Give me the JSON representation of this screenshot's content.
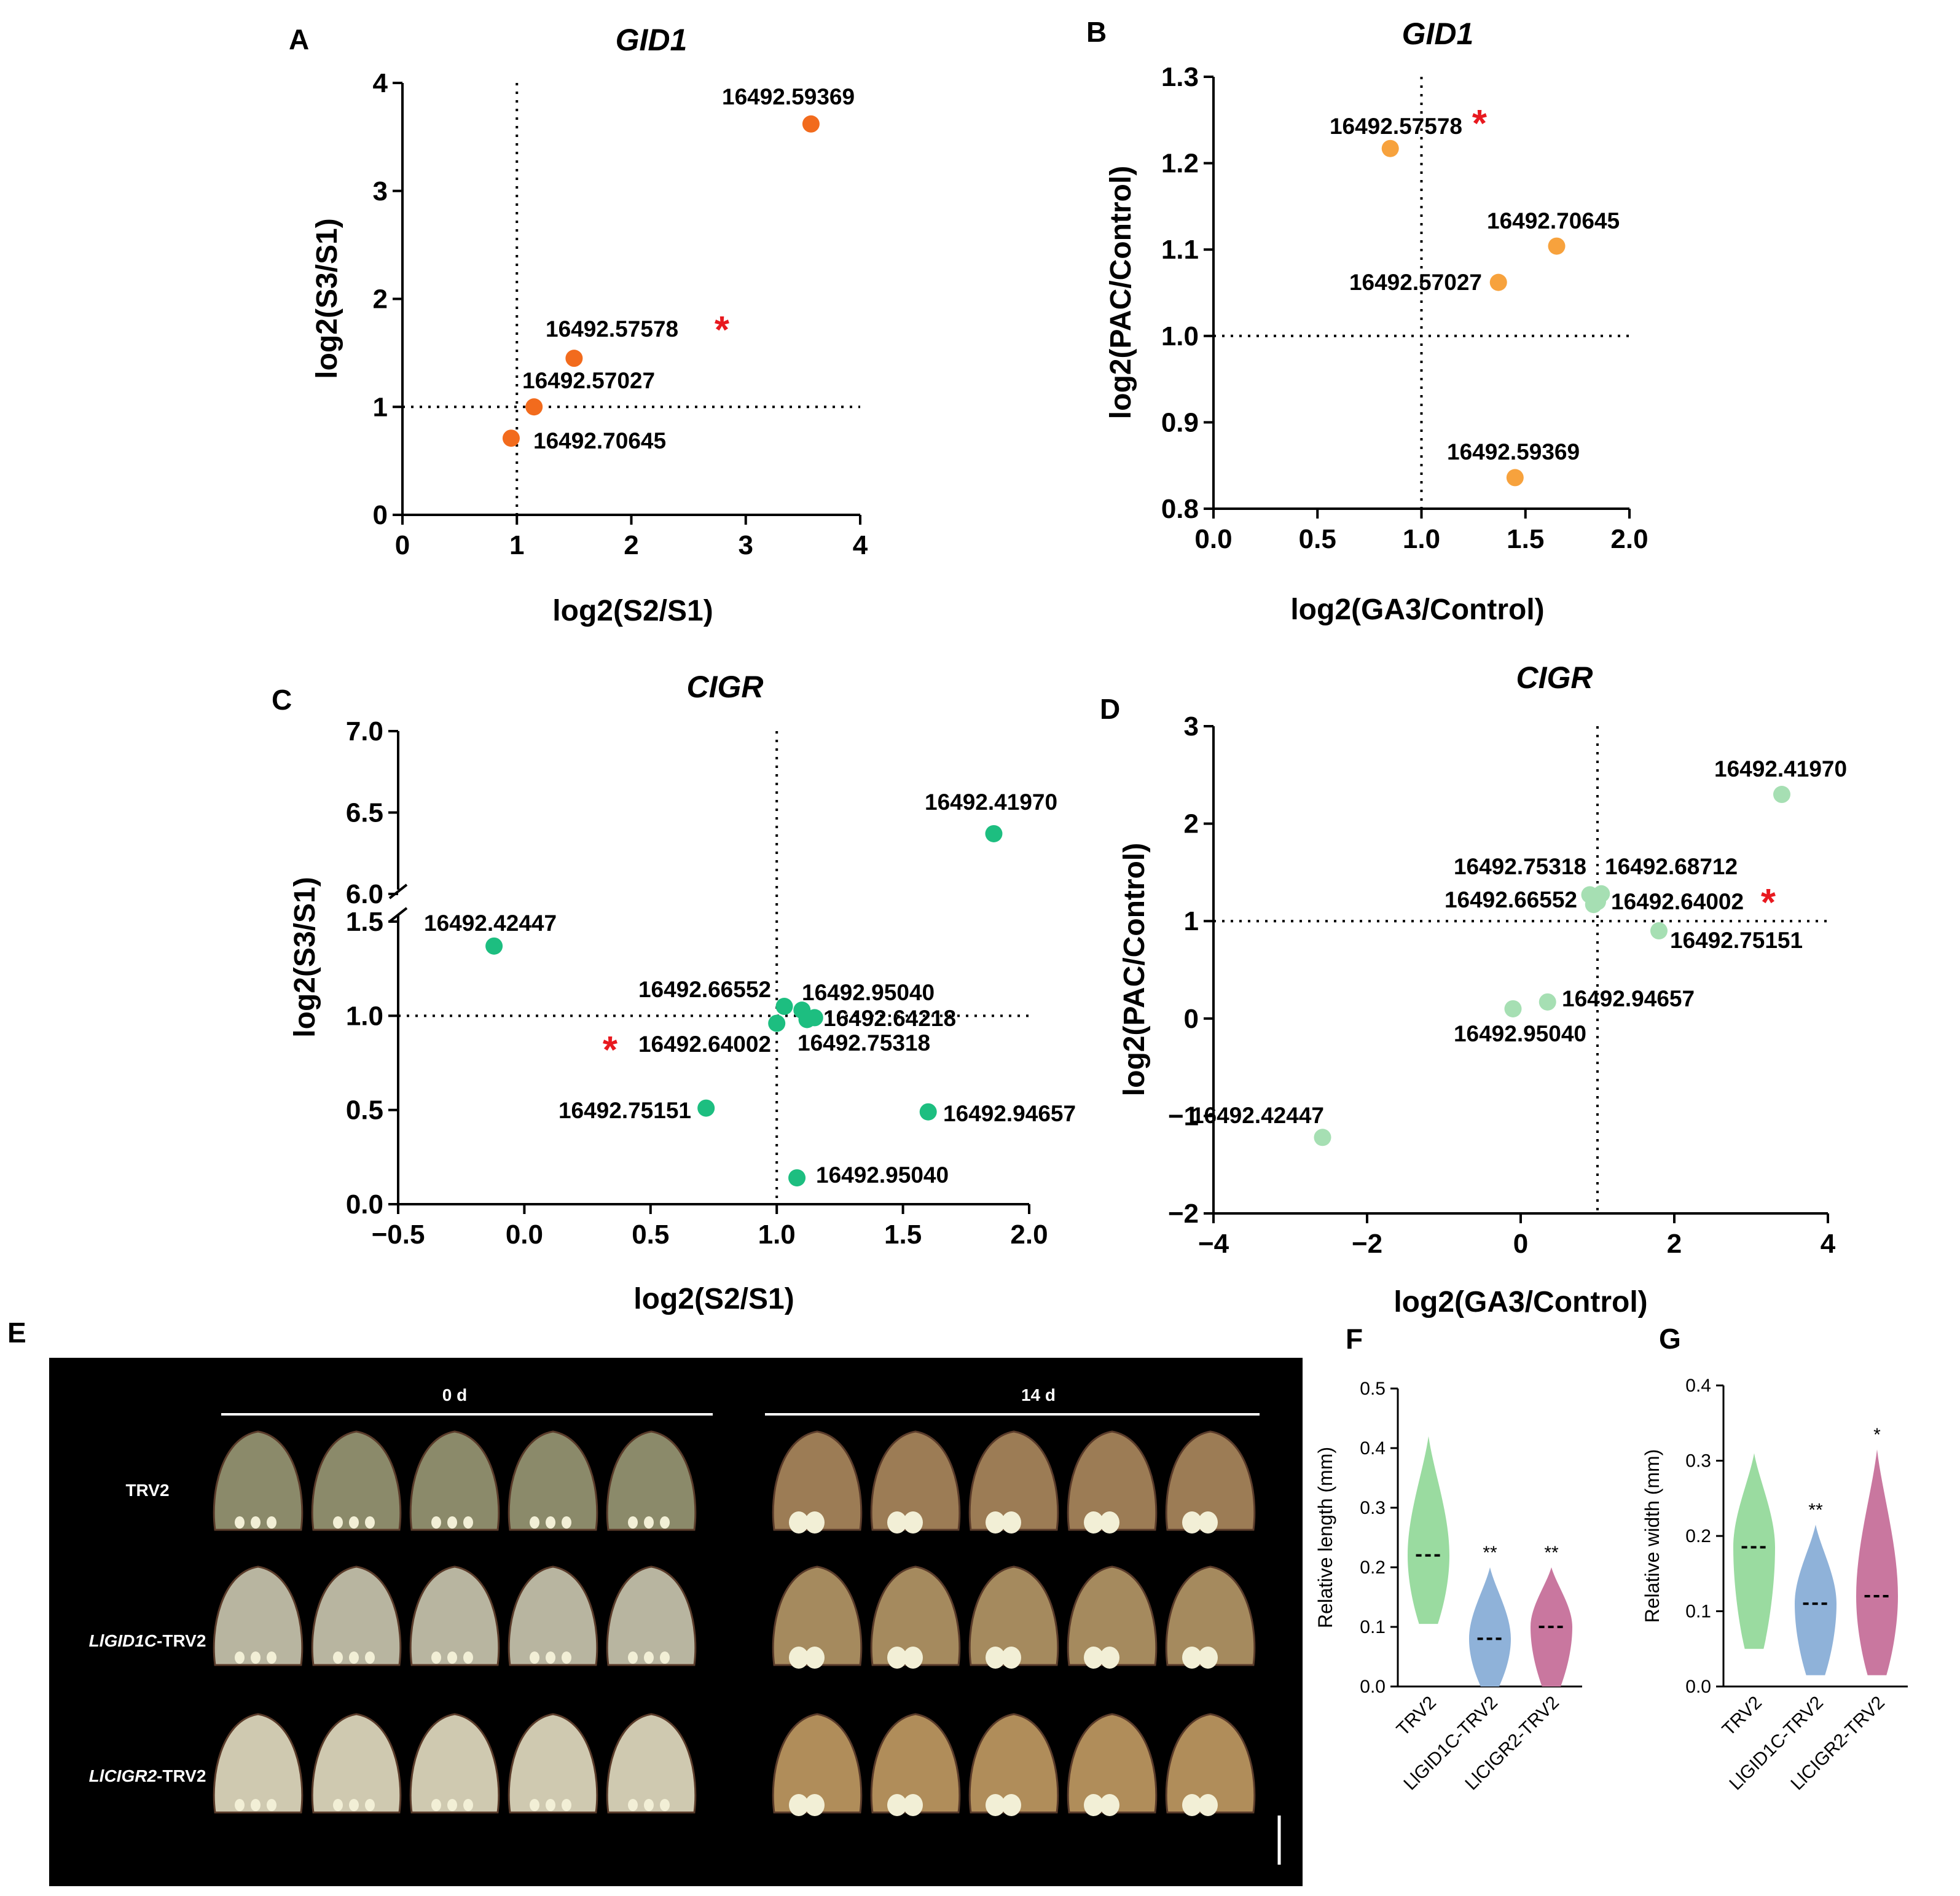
{
  "figure": {
    "panel_letters": [
      "A",
      "B",
      "C",
      "D",
      "E",
      "F",
      "G"
    ],
    "photo": {
      "time_labels": [
        "0 d",
        "14 d"
      ],
      "row_labels": [
        {
          "italic": "",
          "rest": "TRV2"
        },
        {
          "italic": "LlGID1C",
          "rest": "-TRV2"
        },
        {
          "italic": "LlCIGR2",
          "rest": "-TRV2"
        }
      ]
    }
  },
  "chart_data": [
    {
      "panel": "A",
      "type": "scatter",
      "title": "GID1",
      "xlabel": "log2(S2/S1)",
      "ylabel": "log2(S3/S1)",
      "xlim": [
        0,
        4
      ],
      "ylim": [
        0,
        4
      ],
      "xticks": [
        "0",
        "1",
        "2",
        "3",
        "4"
      ],
      "yticks": [
        "0",
        "1",
        "2",
        "3",
        "4"
      ],
      "ref_lines": {
        "x": 1,
        "y": 1
      },
      "color": "#f26b1d",
      "points": [
        {
          "x": 3.57,
          "y": 3.62,
          "label": "16492.59369",
          "star": false
        },
        {
          "x": 1.5,
          "y": 1.45,
          "label": "16492.57578",
          "star": true
        },
        {
          "x": 1.15,
          "y": 1.0,
          "label": "16492.57027",
          "star": false
        },
        {
          "x": 0.95,
          "y": 0.71,
          "label": "16492.70645",
          "star": false
        }
      ]
    },
    {
      "panel": "B",
      "type": "scatter",
      "title": "GID1",
      "xlabel": "log2(GA3/Control)",
      "ylabel": "log2(PAC/Control)",
      "xlim": [
        0,
        2
      ],
      "ylim": [
        0.8,
        1.3
      ],
      "xticks": [
        "0.0",
        "0.5",
        "1.0",
        "1.5",
        "2.0"
      ],
      "yticks": [
        "0.8",
        "0.9",
        "1.0",
        "1.1",
        "1.2",
        "1.3"
      ],
      "ref_lines": {
        "x": 1,
        "y": 1
      },
      "color": "#f7a23d",
      "points": [
        {
          "x": 0.85,
          "y": 1.217,
          "label": "16492.57578",
          "star": true
        },
        {
          "x": 1.65,
          "y": 1.104,
          "label": "16492.70645",
          "star": false
        },
        {
          "x": 1.37,
          "y": 1.062,
          "label": "16492.57027",
          "star": false
        },
        {
          "x": 1.45,
          "y": 0.836,
          "label": "16492.59369",
          "star": false
        }
      ]
    },
    {
      "panel": "C",
      "type": "scatter",
      "title": "CIGR",
      "xlabel": "log2(S2/S1)",
      "ylabel": "log2(S3/S1)",
      "xlim": [
        -0.5,
        2.0
      ],
      "ylim": [
        0,
        7
      ],
      "y_axis_break": [
        1.5,
        6.0
      ],
      "xticks": [
        "−0.5",
        "0.0",
        "0.5",
        "1.0",
        "1.5",
        "2.0"
      ],
      "yticks": [
        "0.0",
        "0.5",
        "1.0",
        "1.5",
        "6.0",
        "6.5",
        "7.0"
      ],
      "ref_lines": {
        "x": 1,
        "y": 1
      },
      "color": "#1dbe80",
      "points": [
        {
          "x": 1.86,
          "y": 6.37,
          "label": "16492.41970",
          "star": false
        },
        {
          "x": -0.12,
          "y": 1.37,
          "label": "16492.42447",
          "star": false
        },
        {
          "x": 1.03,
          "y": 1.05,
          "label": "16492.66552",
          "star": false
        },
        {
          "x": 1.1,
          "y": 1.03,
          "label": "16492.95040",
          "star": false
        },
        {
          "x": 1.15,
          "y": 0.99,
          "label": "16492.64218",
          "star": false
        },
        {
          "x": 1.12,
          "y": 0.98,
          "label": "16492.75318",
          "star": false
        },
        {
          "x": 1.0,
          "y": 0.96,
          "label": "16492.64002",
          "star": true
        },
        {
          "x": 0.72,
          "y": 0.51,
          "label": "16492.75151",
          "star": false
        },
        {
          "x": 1.6,
          "y": 0.49,
          "label": "16492.94657",
          "star": false
        },
        {
          "x": 1.08,
          "y": 0.14,
          "label": "16492.95040",
          "star": false
        }
      ]
    },
    {
      "panel": "D",
      "type": "scatter",
      "title": "CIGR",
      "xlabel": "log2(GA3/Control)",
      "ylabel": "log2(PAC/Control)",
      "xlim": [
        -4,
        4
      ],
      "ylim": [
        -2,
        3
      ],
      "xticks": [
        "−4",
        "−2",
        "0",
        "2",
        "4"
      ],
      "yticks": [
        "−2",
        "−1",
        "0",
        "1",
        "2",
        "3"
      ],
      "ref_lines": {
        "x": 1,
        "y": 1
      },
      "color": "#a6dfb3",
      "points": [
        {
          "x": 3.4,
          "y": 2.3,
          "label": "16492.41970",
          "star": false
        },
        {
          "x": 0.9,
          "y": 1.27,
          "label": "16492.75318",
          "star": false
        },
        {
          "x": 1.05,
          "y": 1.28,
          "label": "16492.68712",
          "star": false
        },
        {
          "x": 0.95,
          "y": 1.17,
          "label": "16492.66552",
          "star": false
        },
        {
          "x": 1.0,
          "y": 1.2,
          "label": "16492.64002",
          "star": true
        },
        {
          "x": 1.8,
          "y": 0.9,
          "label": "16492.75151",
          "star": false
        },
        {
          "x": 0.35,
          "y": 0.17,
          "label": "16492.94657",
          "star": false
        },
        {
          "x": -0.1,
          "y": 0.1,
          "label": "16492.95040",
          "star": false
        },
        {
          "x": -2.58,
          "y": -1.22,
          "label": "16492.42447",
          "star": false
        }
      ]
    },
    {
      "panel": "F",
      "type": "violin",
      "ylabel": "Relative length (mm)",
      "ylim": [
        0,
        0.5
      ],
      "yticks": [
        "0.0",
        "0.1",
        "0.2",
        "0.3",
        "0.4",
        "0.5"
      ],
      "categories": [
        "TRV2",
        "LlGID1C-TRV2",
        "LlCIGR2-TRV2"
      ],
      "colors": [
        "#9adba0",
        "#8fb2d9",
        "#c9779f"
      ],
      "medians": [
        0.22,
        0.08,
        0.1
      ],
      "ranges": [
        [
          0.105,
          0.42
        ],
        [
          0.0,
          0.2
        ],
        [
          0.0,
          0.2
        ]
      ],
      "significance": [
        "",
        "**",
        "**"
      ]
    },
    {
      "panel": "G",
      "type": "violin",
      "ylabel": "Relative width (mm)",
      "ylim": [
        0,
        0.4
      ],
      "yticks": [
        "0.0",
        "0.1",
        "0.2",
        "0.3",
        "0.4"
      ],
      "categories": [
        "TRV2",
        "LlGID1C-TRV2",
        "LlCIGR2-TRV2"
      ],
      "colors": [
        "#9adba0",
        "#8fb2d9",
        "#c9779f"
      ],
      "medians": [
        0.185,
        0.11,
        0.12
      ],
      "ranges": [
        [
          0.05,
          0.31
        ],
        [
          0.015,
          0.215
        ],
        [
          0.015,
          0.315
        ]
      ],
      "significance": [
        "",
        "**",
        "*"
      ]
    }
  ]
}
